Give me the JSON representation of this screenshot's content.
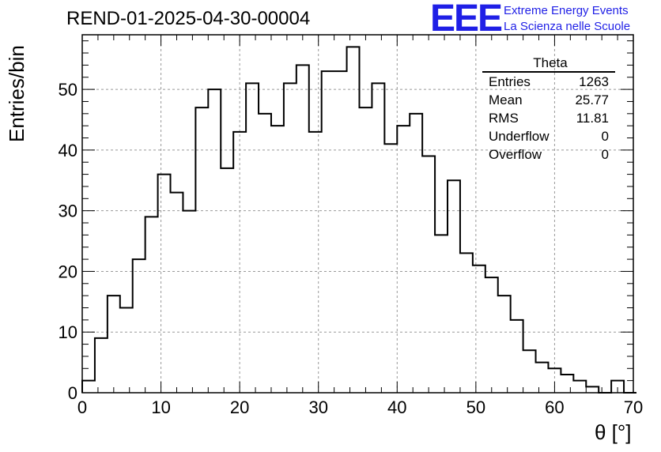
{
  "title": "REND-01-2025-04-30-00004",
  "logo": {
    "mark": "EEE",
    "line1": "Extreme Energy Events",
    "line2": "La Scienza nelle Scuole",
    "color": "#1f1fe6"
  },
  "stats": {
    "name": "Theta",
    "rows": [
      {
        "label": "Entries",
        "value": "1263"
      },
      {
        "label": "Mean",
        "value": "25.77"
      },
      {
        "label": "RMS",
        "value": "11.81"
      },
      {
        "label": "Underflow",
        "value": "0"
      },
      {
        "label": "Overflow",
        "value": "0"
      }
    ]
  },
  "chart_data": {
    "type": "bar",
    "histogram": true,
    "title": "REND-01-2025-04-30-00004",
    "xlabel": "θ [°]",
    "ylabel": "Entries/bin",
    "xlim": [
      0,
      70
    ],
    "ylim": [
      0,
      59
    ],
    "bin_width": 1.6,
    "x_ticks": [
      0,
      10,
      20,
      30,
      40,
      50,
      60,
      70
    ],
    "y_ticks": [
      0,
      10,
      20,
      30,
      40,
      50
    ],
    "grid": true,
    "legend_position": "top-right",
    "bin_edges_start": 0,
    "values": [
      2,
      9,
      16,
      14,
      22,
      29,
      36,
      33,
      30,
      47,
      50,
      37,
      43,
      51,
      46,
      44,
      51,
      54,
      43,
      53,
      53,
      57,
      47,
      51,
      41,
      44,
      46,
      39,
      26,
      35,
      23,
      21,
      19,
      16,
      12,
      7,
      5,
      4,
      3,
      2,
      1,
      0,
      2,
      0
    ]
  }
}
